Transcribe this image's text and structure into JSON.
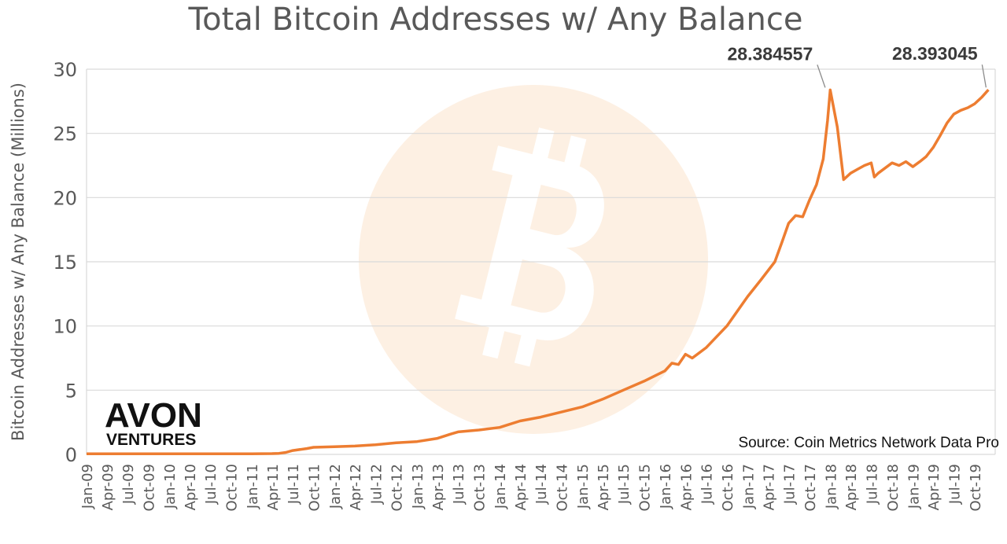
{
  "colors": {
    "line": "#ed7d31",
    "grid": "#d9d9d9",
    "watermark_circle": "#fdf0e3",
    "watermark_symbol": "#ffffff",
    "text": "#595959"
  },
  "logo": {
    "line1": "AVON",
    "line2": "VENTURES"
  },
  "source_text": "Source: Coin Metrics Network Data Pro",
  "chart_data": {
    "type": "line",
    "title": "Total Bitcoin Addresses w/ Any Balance",
    "xlabel": "",
    "ylabel": "Bitcoin Addresses w/ Any Balance (Millions)",
    "ylim": [
      0,
      30
    ],
    "yticks": [
      0,
      5,
      10,
      15,
      20,
      25,
      30
    ],
    "grid": true,
    "legend": "none",
    "watermark_icon": "bitcoin-icon",
    "x_tick_labels": [
      "Jan-09",
      "Apr-09",
      "Jul-09",
      "Oct-09",
      "Jan-10",
      "Apr-10",
      "Jul-10",
      "Oct-10",
      "Jan-11",
      "Apr-11",
      "Jul-11",
      "Oct-11",
      "Jan-12",
      "Apr-12",
      "Jul-12",
      "Oct-12",
      "Jan-13",
      "Apr-13",
      "Jul-13",
      "Oct-13",
      "Jan-14",
      "Apr-14",
      "Jul-14",
      "Oct-14",
      "Jan-15",
      "Apr-15",
      "Jul-15",
      "Oct-15",
      "Jan-16",
      "Apr-16",
      "Jul-16",
      "Oct-16",
      "Jan-17",
      "Apr-17",
      "Jul-17",
      "Oct-17",
      "Jan-18",
      "Apr-18",
      "Jul-18",
      "Oct-18",
      "Jan-19",
      "Apr-19",
      "Jul-19",
      "Oct-19"
    ],
    "x": [
      "2009-01",
      "2009-07",
      "2010-01",
      "2010-07",
      "2011-01",
      "2011-04",
      "2011-05",
      "2011-06",
      "2011-07",
      "2011-09",
      "2011-10",
      "2012-01",
      "2012-04",
      "2012-07",
      "2012-10",
      "2013-01",
      "2013-04",
      "2013-06",
      "2013-07",
      "2013-10",
      "2014-01",
      "2014-04",
      "2014-07",
      "2014-10",
      "2015-01",
      "2015-04",
      "2015-07",
      "2015-10",
      "2016-01",
      "2016-02",
      "2016-03",
      "2016-04",
      "2016-05",
      "2016-07",
      "2016-10",
      "2017-01",
      "2017-03",
      "2017-05",
      "2017-06",
      "2017-07",
      "2017-08",
      "2017-09",
      "2017-10",
      "2017-11",
      "2017-12",
      "2017-12-20",
      "2018-01",
      "2018-02",
      "2018-03",
      "2018-04",
      "2018-05",
      "2018-06",
      "2018-07",
      "2018-07-15",
      "2018-08",
      "2018-10",
      "2018-11",
      "2018-12",
      "2019-01",
      "2019-02",
      "2019-03",
      "2019-04",
      "2019-05",
      "2019-06",
      "2019-07",
      "2019-08",
      "2019-09",
      "2019-10",
      "2019-11",
      "2019-12"
    ],
    "series": [
      {
        "values": [
          0.05,
          0.05,
          0.05,
          0.05,
          0.05,
          0.06,
          0.08,
          0.15,
          0.3,
          0.45,
          0.55,
          0.6,
          0.65,
          0.75,
          0.9,
          1.0,
          1.25,
          1.6,
          1.75,
          1.9,
          2.1,
          2.6,
          2.9,
          3.3,
          3.7,
          4.3,
          5.0,
          5.7,
          6.5,
          7.1,
          7.0,
          7.8,
          7.5,
          8.3,
          10.0,
          12.3,
          13.6,
          15.0,
          16.5,
          18.0,
          18.6,
          18.5,
          19.8,
          21.0,
          23.0,
          26.0,
          28.384557,
          25.5,
          21.4,
          21.9,
          22.2,
          22.5,
          22.7,
          21.6,
          21.9,
          22.7,
          22.5,
          22.8,
          22.4,
          22.8,
          23.2,
          23.9,
          24.8,
          25.8,
          26.5,
          26.8,
          27.0,
          27.3,
          27.8,
          28.393045
        ]
      }
    ],
    "annotations": [
      {
        "label": "28.384557",
        "x": "2017-12-20",
        "y": 28.384557
      },
      {
        "label": "28.393045",
        "x": "2019-12",
        "y": 28.393045
      }
    ]
  }
}
